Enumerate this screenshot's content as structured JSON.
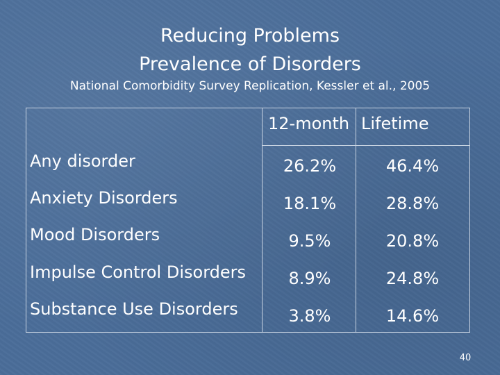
{
  "slide": {
    "title_line1": "Reducing Problems",
    "title_line2": "Prevalence of Disorders",
    "subtitle": "National Comorbidity Survey Replication, Kessler et al., 2005",
    "page_number": "40"
  },
  "table": {
    "columns": [
      "12-month",
      "Lifetime"
    ],
    "rows": [
      {
        "label": "Any disorder",
        "twelve_month": "26.2%",
        "lifetime": "46.4%"
      },
      {
        "label": "Anxiety Disorders",
        "twelve_month": "18.1%",
        "lifetime": "28.8%"
      },
      {
        "label": "Mood Disorders",
        "twelve_month": "9.5%",
        "lifetime": "20.8%"
      },
      {
        "label": "Impulse Control Disorders",
        "twelve_month": "8.9%",
        "lifetime": "24.8%"
      },
      {
        "label": "Substance Use Disorders",
        "twelve_month": "3.8%",
        "lifetime": "14.6%"
      }
    ]
  },
  "colors": {
    "background": "#4a6d99",
    "text": "#ffffff",
    "grid_line": "#c9d4e2"
  }
}
